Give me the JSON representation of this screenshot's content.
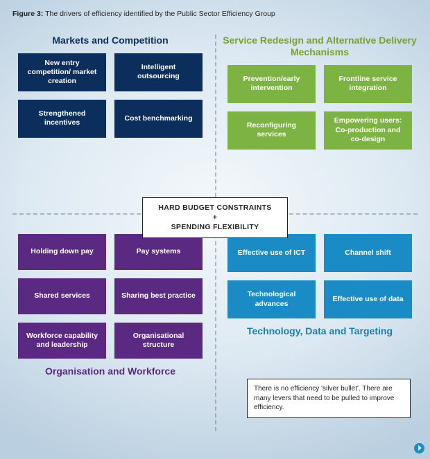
{
  "figure": {
    "caption_label": "Figure 3:",
    "caption_text": "The drivers of efficiency identified by the Public Sector Efficiency Group"
  },
  "center": {
    "line1": "HARD BUDGET CONSTRAINTS",
    "plus": "+",
    "line2": "SPENDING FLEXIBILITY"
  },
  "quadrants": {
    "tl": {
      "title": "Markets and Competition",
      "title_color": "#0b2e5c",
      "box_color": "#0b2e5c",
      "boxes": [
        "New entry competition/ market creation",
        "Intelligent outsourcing",
        "Strengthened incentives",
        "Cost benchmarking"
      ]
    },
    "tr": {
      "title": "Service Redesign and Alternative Delivery Mechanisms",
      "title_color": "#78a22f",
      "box_color": "#7cb342",
      "boxes": [
        "Prevention/early intervention",
        "Frontline service integration",
        "Reconfiguring services",
        "Empowering users: Co-production and co-design"
      ]
    },
    "bl": {
      "title": "Organisation and Workforce",
      "title_color": "#5a2a82",
      "box_color": "#5a2a82",
      "boxes": [
        "Holding down pay",
        "Pay systems",
        "Shared services",
        "Sharing best practice",
        "Workforce capability and leadership",
        "Organisational structure"
      ]
    },
    "br": {
      "title": "Technology, Data and Targeting",
      "title_color": "#1a7eb0",
      "box_color": "#1a8bc4",
      "boxes": [
        "Effective use of ICT",
        "Channel shift",
        "Technological advances",
        "Effective use of data"
      ]
    }
  },
  "note": {
    "text": "There is no efficiency 'silver bullet'. There are many levers that need to be pulled to improve efficiency."
  },
  "style": {
    "background_inner": "#f4f8fb",
    "background_outer": "#bacfe0",
    "divider_color": "rgba(90,110,130,0.45)",
    "caption_fontsize": 10.5,
    "title_fontsize": 14,
    "box_fontsize": 10.5,
    "note_fontsize": 10,
    "arrow_color": "#1a8bc4"
  }
}
